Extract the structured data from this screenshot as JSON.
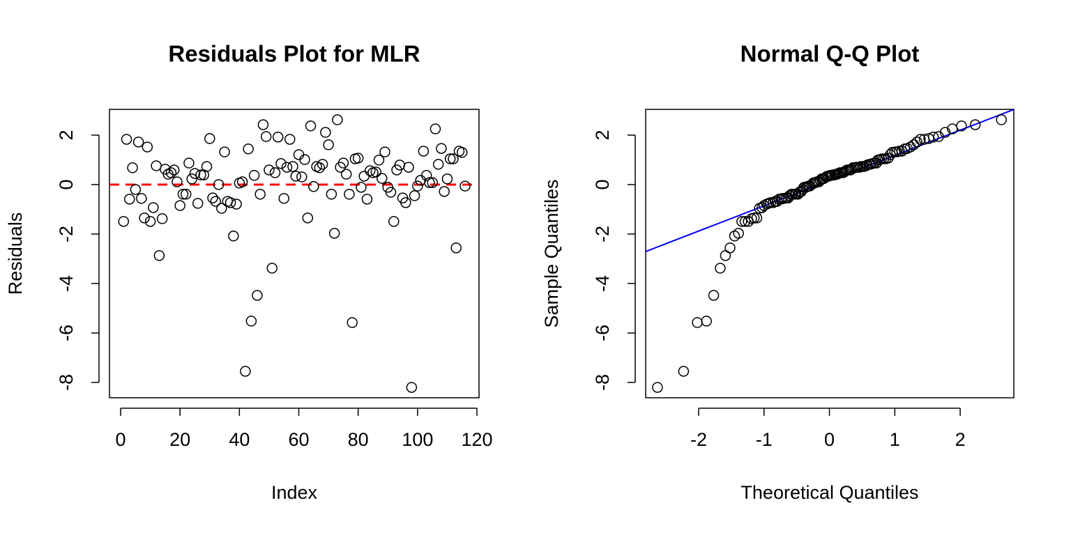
{
  "chart_data": [
    {
      "type": "scatter",
      "title": "Residuals Plot for MLR",
      "xlabel": "Index",
      "ylabel": "Residuals",
      "x": [
        1,
        2,
        3,
        4,
        5,
        6,
        7,
        8,
        9,
        10,
        11,
        12,
        13,
        14,
        15,
        16,
        17,
        18,
        19,
        20,
        21,
        22,
        23,
        24,
        25,
        26,
        27,
        28,
        29,
        30,
        31,
        32,
        33,
        34,
        35,
        36,
        37,
        38,
        39,
        40,
        41,
        42,
        43,
        44,
        45,
        46,
        47,
        48,
        49,
        50,
        51,
        52,
        53,
        54,
        55,
        56,
        57,
        58,
        59,
        60,
        61,
        62,
        63,
        64,
        65,
        66,
        67,
        68,
        69,
        70,
        71,
        72,
        73,
        74,
        75,
        76,
        77,
        78,
        79,
        80,
        81,
        82,
        83,
        84,
        85,
        86,
        87,
        88,
        89,
        90,
        91,
        92,
        93,
        94,
        95,
        96,
        97,
        98,
        99,
        100,
        101,
        102,
        103,
        104,
        105,
        106,
        107,
        108,
        109,
        110,
        111,
        112,
        113,
        114,
        115,
        116
      ],
      "values": [
        -1.49,
        1.83,
        -0.59,
        0.68,
        -0.2,
        1.72,
        -0.56,
        -1.35,
        1.52,
        -1.49,
        -0.93,
        0.76,
        -2.87,
        -1.38,
        0.62,
        0.42,
        0.48,
        0.59,
        0.11,
        -0.85,
        -0.39,
        -0.39,
        0.87,
        0.23,
        0.45,
        -0.76,
        0.39,
        0.39,
        0.73,
        1.86,
        -0.54,
        -0.68,
        0.0,
        -0.96,
        1.32,
        -0.68,
        -0.73,
        -2.08,
        -0.79,
        0.06,
        0.11,
        -7.55,
        1.44,
        -5.52,
        0.37,
        -4.48,
        -0.39,
        2.42,
        1.94,
        0.59,
        -3.38,
        0.48,
        1.92,
        0.85,
        -0.56,
        0.7,
        1.83,
        0.73,
        0.34,
        1.21,
        0.31,
        1.01,
        -1.35,
        2.37,
        -0.08,
        0.73,
        0.68,
        0.82,
        2.11,
        1.61,
        -0.39,
        -1.97,
        2.62,
        0.7,
        0.87,
        0.42,
        -0.39,
        -5.58,
        1.04,
        1.07,
        -0.11,
        0.34,
        -0.59,
        0.56,
        0.48,
        0.51,
        0.99,
        0.25,
        1.32,
        -0.11,
        -0.31,
        -1.49,
        0.59,
        0.79,
        -0.54,
        -0.73,
        0.7,
        -8.2,
        -0.45,
        -0.06,
        0.17,
        1.35,
        0.37,
        0.08,
        0.08,
        2.25,
        0.82,
        1.46,
        -0.28,
        0.23,
        1.04,
        1.04,
        -2.56,
        1.35,
        1.3,
        -0.06
      ],
      "color": "#000000",
      "hline": {
        "y": 0,
        "color": "#ff0000",
        "dashed": true
      },
      "xlim": [
        -3.76,
        120.7
      ],
      "ylim": [
        -8.62,
        3.04
      ],
      "xticks": [
        0,
        20,
        40,
        60,
        80,
        100,
        120
      ],
      "yticks": [
        -8,
        -6,
        -4,
        -2,
        0,
        2
      ]
    },
    {
      "type": "scatter",
      "title": "Normal Q-Q Plot",
      "xlabel": "Theoretical Quantiles",
      "ylabel": "Sample Quantiles",
      "x": [
        -2.63,
        -2.23,
        -2.02,
        -1.88,
        -1.77,
        -1.67,
        -1.59,
        -1.52,
        -1.45,
        -1.39,
        -1.34,
        -1.29,
        -1.24,
        -1.19,
        -1.15,
        -1.11,
        -1.07,
        -1.03,
        -1.0,
        -0.96,
        -0.93,
        -0.9,
        -0.86,
        -0.83,
        -0.8,
        -0.77,
        -0.74,
        -0.72,
        -0.69,
        -0.66,
        -0.63,
        -0.61,
        -0.58,
        -0.56,
        -0.53,
        -0.51,
        -0.48,
        -0.46,
        -0.43,
        -0.41,
        -0.39,
        -0.36,
        -0.34,
        -0.32,
        -0.3,
        -0.27,
        -0.25,
        -0.23,
        -0.21,
        -0.19,
        -0.16,
        -0.14,
        -0.12,
        -0.1,
        -0.08,
        -0.05,
        -0.03,
        -0.01,
        0.01,
        0.03,
        0.05,
        0.08,
        0.1,
        0.12,
        0.14,
        0.16,
        0.19,
        0.21,
        0.23,
        0.25,
        0.27,
        0.3,
        0.32,
        0.34,
        0.36,
        0.39,
        0.41,
        0.43,
        0.46,
        0.48,
        0.51,
        0.53,
        0.56,
        0.58,
        0.61,
        0.63,
        0.66,
        0.69,
        0.72,
        0.74,
        0.77,
        0.8,
        0.83,
        0.86,
        0.9,
        0.93,
        0.96,
        1.0,
        1.03,
        1.07,
        1.11,
        1.15,
        1.19,
        1.24,
        1.29,
        1.34,
        1.39,
        1.45,
        1.52,
        1.59,
        1.67,
        1.77,
        1.88,
        2.02,
        2.23,
        2.63
      ],
      "values": [
        -8.2,
        -7.55,
        -5.58,
        -5.52,
        -4.48,
        -3.38,
        -2.87,
        -2.56,
        -2.08,
        -1.97,
        -1.49,
        -1.49,
        -1.49,
        -1.38,
        -1.35,
        -1.35,
        -0.96,
        -0.93,
        -0.85,
        -0.79,
        -0.76,
        -0.73,
        -0.73,
        -0.68,
        -0.68,
        -0.59,
        -0.59,
        -0.56,
        -0.56,
        -0.54,
        -0.54,
        -0.45,
        -0.39,
        -0.39,
        -0.39,
        -0.39,
        -0.39,
        -0.31,
        -0.28,
        -0.2,
        -0.11,
        -0.11,
        -0.08,
        -0.06,
        -0.06,
        0.0,
        0.06,
        0.08,
        0.08,
        0.11,
        0.11,
        0.17,
        0.23,
        0.23,
        0.25,
        0.31,
        0.34,
        0.34,
        0.37,
        0.37,
        0.39,
        0.39,
        0.42,
        0.42,
        0.45,
        0.48,
        0.48,
        0.48,
        0.51,
        0.56,
        0.59,
        0.59,
        0.59,
        0.62,
        0.68,
        0.68,
        0.7,
        0.7,
        0.7,
        0.73,
        0.73,
        0.73,
        0.76,
        0.79,
        0.82,
        0.82,
        0.85,
        0.87,
        0.87,
        0.99,
        1.01,
        1.04,
        1.04,
        1.04,
        1.07,
        1.21,
        1.3,
        1.32,
        1.32,
        1.35,
        1.35,
        1.44,
        1.46,
        1.52,
        1.61,
        1.72,
        1.83,
        1.83,
        1.86,
        1.92,
        1.94,
        2.11,
        2.25,
        2.37,
        2.42,
        2.62
      ],
      "color": "#000000",
      "qqline": {
        "intercept": 0.16,
        "slope": 1.02,
        "color": "#0000ff"
      },
      "xlim": [
        -2.81,
        2.82
      ],
      "ylim": [
        -8.62,
        3.04
      ],
      "xticks": [
        -2,
        -1,
        0,
        1,
        2
      ],
      "yticks": [
        -8,
        -6,
        -4,
        -2,
        0,
        2
      ]
    }
  ]
}
